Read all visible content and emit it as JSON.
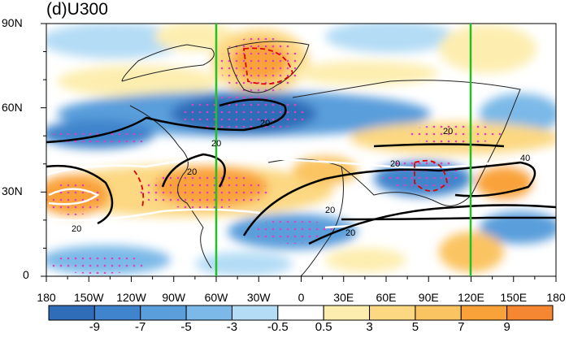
{
  "title": "(d)U300",
  "lat_labels": [
    "90N",
    "60N",
    "30N",
    "0"
  ],
  "lon_labels": [
    "180",
    "150W",
    "120W",
    "90W",
    "60W",
    "30W",
    "0",
    "30E",
    "60E",
    "90E",
    "120E",
    "150E",
    "180"
  ],
  "colorbar": {
    "levels": [
      "-9",
      "-7",
      "-5",
      "-3",
      "-0.5",
      "0.5",
      "3",
      "5",
      "7",
      "9"
    ],
    "colors": [
      "#2f6db8",
      "#3f84cc",
      "#5a9edb",
      "#7cb9e8",
      "#b4dcf5",
      "#ffffff",
      "#fdeeb0",
      "#fcd882",
      "#fbc462",
      "#f9a23a",
      "#f58632"
    ]
  },
  "map": {
    "region_lon": [
      "180",
      "180"
    ],
    "region_lat": [
      "0",
      "90N"
    ],
    "reference_lines": [
      "60W",
      "120E"
    ],
    "reference_line_color": "#22c022",
    "contour_labels": [
      "20",
      "20",
      "20",
      "20",
      "20",
      "20",
      "20",
      "20",
      "40"
    ],
    "stipple_color": "#e040c0"
  }
}
